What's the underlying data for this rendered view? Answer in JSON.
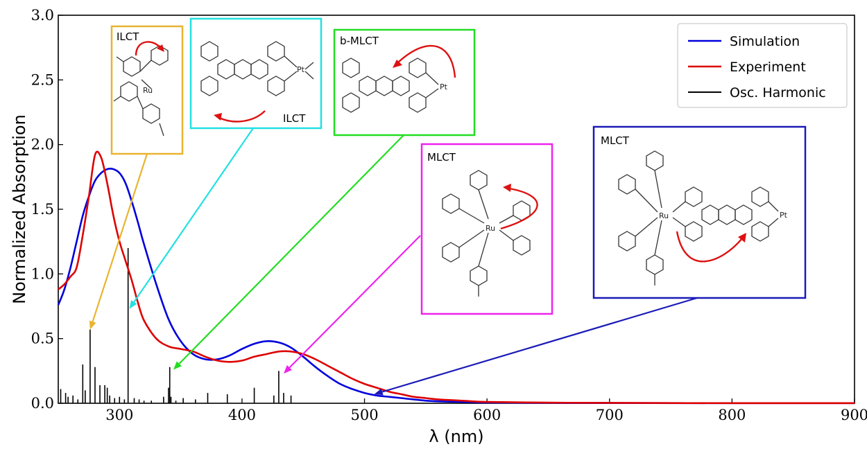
{
  "chart_data": {
    "type": "line",
    "xlabel": "λ (nm)",
    "ylabel": "Normalized Absorption",
    "xlim": [
      250,
      900
    ],
    "ylim": [
      0,
      3.0
    ],
    "xticks": [
      "300",
      "400",
      "500",
      "600",
      "700",
      "800",
      "900"
    ],
    "yticks": [
      "0.0",
      "0.5",
      "1.0",
      "1.5",
      "2.0",
      "2.5",
      "3.0"
    ],
    "grid": false,
    "legend_position": "top-right",
    "series": [
      {
        "name": "Simulation",
        "color": "#0000dd",
        "x": [
          250,
          255,
          260,
          265,
          270,
          275,
          280,
          285,
          290,
          295,
          300,
          305,
          310,
          315,
          320,
          330,
          340,
          350,
          360,
          370,
          380,
          390,
          400,
          410,
          420,
          430,
          440,
          450,
          460,
          470,
          480,
          490,
          500,
          510,
          520,
          530,
          540,
          550,
          560,
          580,
          600,
          650,
          700,
          800,
          900
        ],
        "y": [
          0.76,
          0.88,
          1.05,
          1.25,
          1.45,
          1.6,
          1.72,
          1.78,
          1.81,
          1.81,
          1.78,
          1.7,
          1.56,
          1.4,
          1.23,
          0.92,
          0.65,
          0.48,
          0.38,
          0.34,
          0.34,
          0.37,
          0.42,
          0.46,
          0.48,
          0.47,
          0.43,
          0.36,
          0.28,
          0.21,
          0.15,
          0.11,
          0.08,
          0.06,
          0.05,
          0.04,
          0.03,
          0.02,
          0.015,
          0.01,
          0.006,
          0.003,
          0.002,
          0.001,
          0.001
        ]
      },
      {
        "name": "Experiment",
        "color": "#dd0000",
        "x": [
          250,
          255,
          260,
          265,
          270,
          275,
          280,
          285,
          290,
          295,
          300,
          305,
          310,
          315,
          320,
          330,
          340,
          350,
          360,
          370,
          380,
          390,
          400,
          410,
          420,
          430,
          440,
          450,
          460,
          470,
          480,
          490,
          500,
          510,
          520,
          530,
          540,
          550,
          560,
          580,
          600,
          650,
          700,
          800,
          900
        ],
        "y": [
          0.88,
          0.92,
          0.98,
          1.05,
          1.3,
          1.6,
          1.92,
          1.9,
          1.7,
          1.45,
          1.25,
          1.1,
          0.95,
          0.78,
          0.64,
          0.5,
          0.44,
          0.42,
          0.4,
          0.36,
          0.33,
          0.32,
          0.33,
          0.36,
          0.38,
          0.4,
          0.4,
          0.38,
          0.34,
          0.29,
          0.24,
          0.19,
          0.15,
          0.12,
          0.09,
          0.07,
          0.05,
          0.04,
          0.03,
          0.02,
          0.01,
          0.005,
          0.003,
          0.001,
          0.001
        ]
      },
      {
        "name": "Osc. Harmonic",
        "color": "#000000",
        "type": "stick",
        "x": [
          252,
          256,
          258,
          262,
          266,
          270,
          272,
          276,
          280,
          284,
          288,
          290,
          292,
          296,
          300,
          304,
          307,
          312,
          316,
          320,
          326,
          336,
          340,
          341,
          342,
          346,
          352,
          362,
          372,
          388,
          410,
          426,
          430,
          434,
          440
        ],
        "y": [
          0.11,
          0.08,
          0.05,
          0.06,
          0.03,
          0.3,
          0.1,
          0.57,
          0.28,
          0.14,
          0.14,
          0.12,
          0.06,
          0.04,
          0.05,
          0.03,
          1.2,
          0.04,
          0.03,
          0.02,
          0.02,
          0.05,
          0.12,
          0.28,
          0.05,
          0.02,
          0.04,
          0.03,
          0.08,
          0.07,
          0.12,
          0.06,
          0.25,
          0.08,
          0.06
        ]
      }
    ],
    "annotations": [
      {
        "label": "ILCT",
        "color": "#e8b430",
        "target_x": 276,
        "target_y": 0.57
      },
      {
        "label": "ILCT",
        "color": "#22e0e0",
        "target_x": 308,
        "target_y": 0.73
      },
      {
        "label": "b-MLCT",
        "color": "#22dd22",
        "target_x": 344,
        "target_y": 0.26
      },
      {
        "label": "MLCT",
        "color": "#ee22ee",
        "target_x": 434,
        "target_y": 0.23
      },
      {
        "label": "MLCT",
        "color": "#1a1ab8",
        "target_x": 508,
        "target_y": 0.07
      }
    ]
  }
}
